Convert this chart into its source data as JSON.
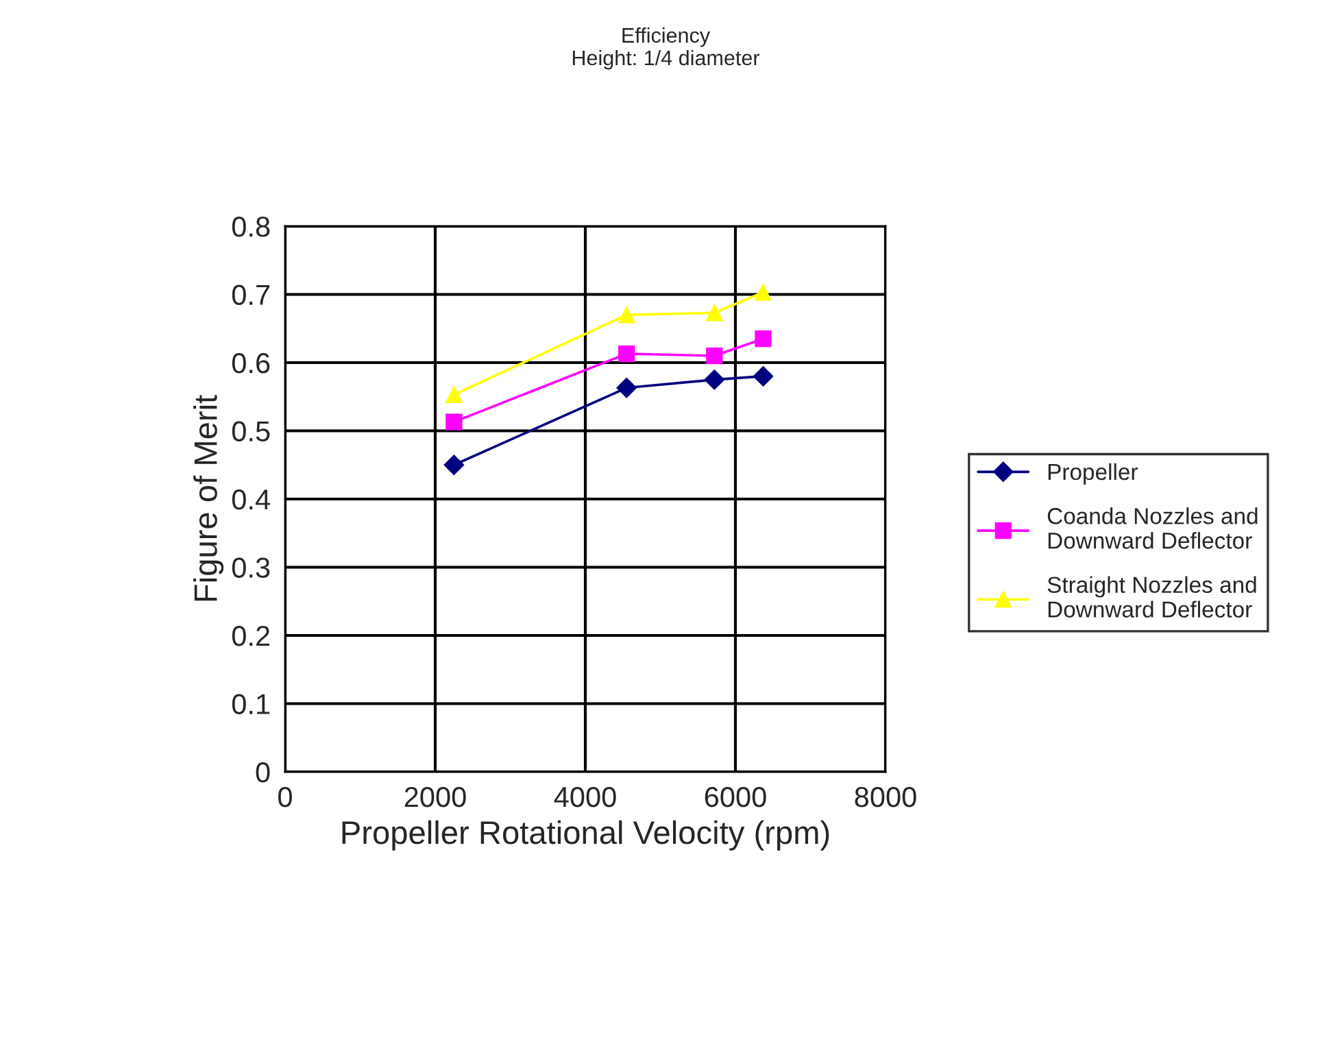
{
  "chart_data": {
    "type": "line",
    "title": "Efficiency\nHeight: 1/4 diameter",
    "xlabel": "Propeller Rotational Velocity (rpm)",
    "ylabel": "Figure of Merit",
    "x": [
      2250,
      4550,
      5720,
      6370
    ],
    "series": [
      {
        "name": "Propeller",
        "color": "#000080",
        "marker": "diamond",
        "values": [
          0.45,
          0.563,
          0.575,
          0.58
        ]
      },
      {
        "name": "Coanda Nozzles and\nDownward Deflector",
        "color": "#ff00ff",
        "marker": "square",
        "values": [
          0.513,
          0.613,
          0.61,
          0.635
        ]
      },
      {
        "name": "Straight Nozzles and\nDownward Deflector",
        "color": "#ffff00",
        "marker": "triangle",
        "values": [
          0.553,
          0.67,
          0.673,
          0.703
        ]
      }
    ],
    "xlim": [
      0,
      8000
    ],
    "xticks": [
      0,
      2000,
      4000,
      6000,
      8000
    ],
    "ylim": [
      0,
      0.8
    ],
    "yticks": [
      0,
      0.1,
      0.2,
      0.3,
      0.4,
      0.5,
      0.6,
      0.7,
      0.8
    ],
    "grid": true,
    "legend": "right",
    "line_style": "solid"
  }
}
